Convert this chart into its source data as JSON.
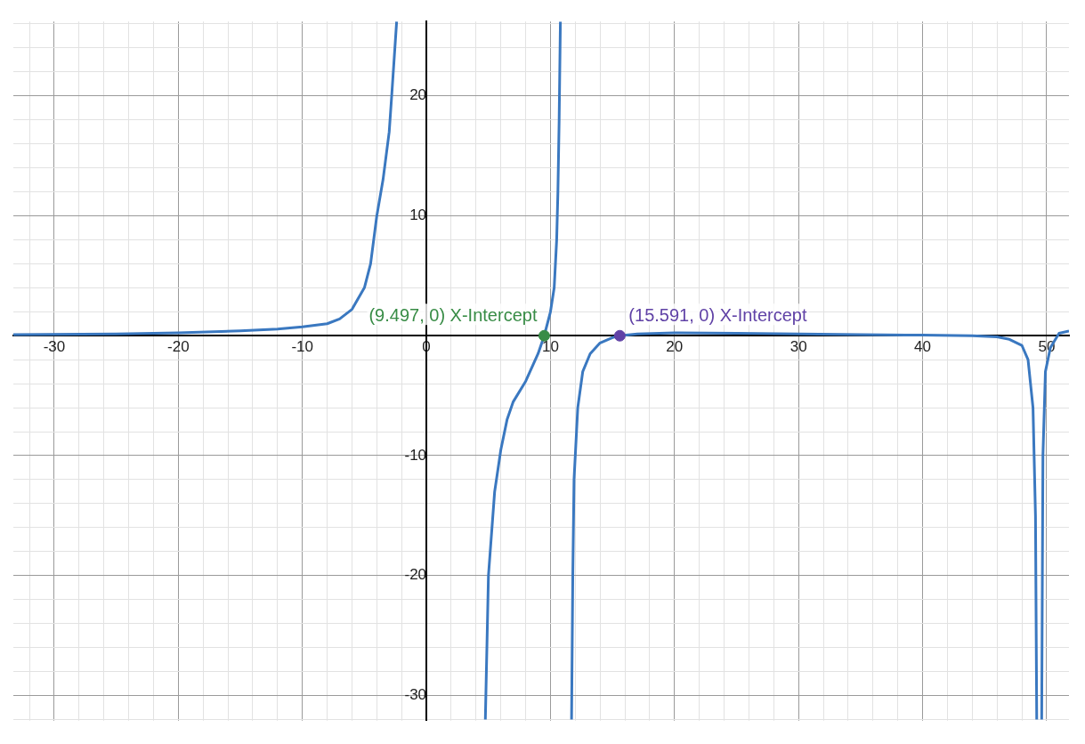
{
  "chart_data": {
    "type": "line",
    "xlim": [
      -33.3,
      51.8
    ],
    "ylim": [
      -32.1,
      26.2
    ],
    "xticks": [
      {
        "value": -32,
        "label": null
      },
      {
        "value": -30,
        "label": "-30"
      },
      {
        "value": -28,
        "label": null
      },
      {
        "value": -26,
        "label": null
      },
      {
        "value": -24,
        "label": null
      },
      {
        "value": -22,
        "label": null
      },
      {
        "value": -20,
        "label": "-20"
      },
      {
        "value": -18,
        "label": null
      },
      {
        "value": -16,
        "label": null
      },
      {
        "value": -14,
        "label": null
      },
      {
        "value": -12,
        "label": null
      },
      {
        "value": -10,
        "label": "-10"
      },
      {
        "value": -8,
        "label": null
      },
      {
        "value": -6,
        "label": null
      },
      {
        "value": -4,
        "label": null
      },
      {
        "value": -2,
        "label": null
      },
      {
        "value": 0,
        "label": "0"
      },
      {
        "value": 2,
        "label": null
      },
      {
        "value": 4,
        "label": null
      },
      {
        "value": 6,
        "label": null
      },
      {
        "value": 8,
        "label": null
      },
      {
        "value": 10,
        "label": "10"
      },
      {
        "value": 12,
        "label": null
      },
      {
        "value": 14,
        "label": null
      },
      {
        "value": 16,
        "label": null
      },
      {
        "value": 18,
        "label": null
      },
      {
        "value": 20,
        "label": "20"
      },
      {
        "value": 22,
        "label": null
      },
      {
        "value": 24,
        "label": null
      },
      {
        "value": 26,
        "label": null
      },
      {
        "value": 28,
        "label": null
      },
      {
        "value": 30,
        "label": "30"
      },
      {
        "value": 32,
        "label": null
      },
      {
        "value": 34,
        "label": null
      },
      {
        "value": 36,
        "label": null
      },
      {
        "value": 38,
        "label": null
      },
      {
        "value": 40,
        "label": "40"
      },
      {
        "value": 42,
        "label": null
      },
      {
        "value": 44,
        "label": null
      },
      {
        "value": 46,
        "label": null
      },
      {
        "value": 48,
        "label": null
      },
      {
        "value": 50,
        "label": "50"
      }
    ],
    "yticks": [
      {
        "value": -32,
        "label": null
      },
      {
        "value": -30,
        "label": "-30"
      },
      {
        "value": -28,
        "label": null
      },
      {
        "value": -26,
        "label": null
      },
      {
        "value": -24,
        "label": null
      },
      {
        "value": -22,
        "label": null
      },
      {
        "value": -20,
        "label": "-20"
      },
      {
        "value": -18,
        "label": null
      },
      {
        "value": -16,
        "label": null
      },
      {
        "value": -14,
        "label": null
      },
      {
        "value": -12,
        "label": null
      },
      {
        "value": -10,
        "label": "-10"
      },
      {
        "value": -8,
        "label": null
      },
      {
        "value": -6,
        "label": null
      },
      {
        "value": -4,
        "label": null
      },
      {
        "value": -2,
        "label": null
      },
      {
        "value": 0,
        "label": null
      },
      {
        "value": 2,
        "label": null
      },
      {
        "value": 4,
        "label": null
      },
      {
        "value": 6,
        "label": null
      },
      {
        "value": 8,
        "label": null
      },
      {
        "value": 10,
        "label": "10"
      },
      {
        "value": 12,
        "label": null
      },
      {
        "value": 14,
        "label": null
      },
      {
        "value": 16,
        "label": null
      },
      {
        "value": 18,
        "label": null
      },
      {
        "value": 20,
        "label": "20"
      },
      {
        "value": 22,
        "label": null
      },
      {
        "value": 24,
        "label": null
      },
      {
        "value": 26,
        "label": null
      }
    ],
    "grid": true,
    "series": [
      {
        "color": "#3a78c0",
        "x": [
          -33.3,
          -25,
          -20,
          -15,
          -12,
          -10,
          -8,
          -7,
          -6,
          -5,
          -4.5,
          -4,
          -3.5,
          -3,
          -2.8,
          -2.4
        ],
        "values": [
          0.1,
          0.15,
          0.25,
          0.4,
          0.55,
          0.75,
          1,
          1.4,
          2.2,
          4,
          6,
          10,
          13,
          17,
          20,
          26.2
        ]
      },
      {
        "color": "#3a78c0",
        "x": [
          4.75,
          5,
          5.5,
          6,
          6.5,
          7,
          8,
          9,
          9.497,
          10,
          10.3,
          10.5,
          10.6,
          10.7,
          10.8
        ],
        "values": [
          -32,
          -20,
          -13,
          -9.5,
          -7,
          -5.5,
          -3.8,
          -1.5,
          0,
          2,
          4,
          8,
          12,
          18,
          26.2
        ]
      },
      {
        "color": "#3a78c0",
        "x": [
          11.7,
          11.8,
          11.9,
          12.2,
          12.6,
          13.2,
          14,
          15,
          15.591,
          17,
          20,
          25,
          30,
          35,
          40,
          44,
          46,
          47,
          48,
          48.5,
          48.9,
          49.1,
          49.2
        ],
        "values": [
          -32,
          -20,
          -12,
          -6,
          -3,
          -1.5,
          -0.6,
          -0.15,
          0,
          0.15,
          0.25,
          0.2,
          0.15,
          0.1,
          0.05,
          0,
          -0.1,
          -0.3,
          -0.8,
          -2,
          -6,
          -15,
          -32
        ]
      },
      {
        "color": "#3a78c0",
        "x": [
          49.6,
          49.7,
          49.9,
          50.3,
          51,
          51.8
        ],
        "values": [
          -32,
          -10,
          -3,
          -1,
          0.2,
          0.4
        ]
      },
      {
        "type": "scatter",
        "color": "#388c46",
        "x": [
          9.497
        ],
        "values": [
          0
        ]
      },
      {
        "type": "scatter",
        "color": "#6042a6",
        "x": [
          15.591
        ],
        "values": [
          0
        ]
      }
    ],
    "annotations": [
      {
        "text": "(9.497, 0) X-Intercept",
        "x": 9.497,
        "y": 0
      },
      {
        "text": "(15.591, 0) X-Intercept",
        "x": 15.591,
        "y": 0
      }
    ]
  }
}
